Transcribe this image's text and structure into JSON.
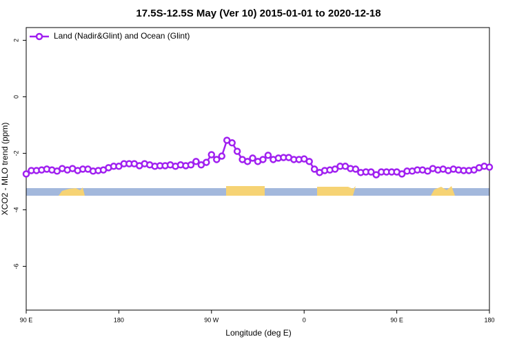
{
  "chart_data": {
    "type": "line",
    "title": "17.5S-12.5S May (Ver 10)   2015-01-01 to 2020-12-18",
    "x_label": "Longitude (deg E)",
    "y_label": "XCO2 - MLO trend (ppm)",
    "x": [
      90,
      95,
      100,
      105,
      110,
      115,
      120,
      125,
      130,
      135,
      140,
      145,
      150,
      155,
      160,
      165,
      170,
      175,
      180,
      185,
      190,
      195,
      200,
      205,
      210,
      215,
      220,
      225,
      230,
      235,
      240,
      245,
      250,
      255,
      260,
      265,
      270,
      275,
      280,
      285,
      290,
      295,
      300,
      305,
      310,
      315,
      320,
      325,
      330,
      335,
      340,
      345,
      350,
      355,
      360,
      365,
      370,
      375,
      380,
      385,
      390,
      395,
      400,
      405,
      410,
      415,
      420,
      425,
      430,
      435,
      440,
      445,
      450,
      455,
      460,
      465,
      470,
      475,
      480,
      485,
      490,
      495,
      500,
      505,
      510,
      515,
      520,
      525,
      530,
      535,
      540
    ],
    "series": [
      {
        "name": "Land (Nadir&Glint) and Ocean (Glint)",
        "color": "#a020f0",
        "values": [
          -2.73,
          -2.61,
          -2.61,
          -2.59,
          -2.56,
          -2.59,
          -2.63,
          -2.54,
          -2.59,
          -2.54,
          -2.61,
          -2.56,
          -2.56,
          -2.63,
          -2.61,
          -2.59,
          -2.51,
          -2.46,
          -2.46,
          -2.37,
          -2.37,
          -2.37,
          -2.44,
          -2.37,
          -2.41,
          -2.46,
          -2.44,
          -2.44,
          -2.41,
          -2.46,
          -2.41,
          -2.44,
          -2.41,
          -2.29,
          -2.41,
          -2.32,
          -2.05,
          -2.22,
          -2.1,
          -1.54,
          -1.63,
          -1.93,
          -2.22,
          -2.29,
          -2.17,
          -2.29,
          -2.22,
          -2.07,
          -2.22,
          -2.17,
          -2.15,
          -2.15,
          -2.22,
          -2.22,
          -2.2,
          -2.29,
          -2.56,
          -2.68,
          -2.61,
          -2.59,
          -2.56,
          -2.46,
          -2.46,
          -2.54,
          -2.56,
          -2.68,
          -2.66,
          -2.66,
          -2.76,
          -2.66,
          -2.66,
          -2.66,
          -2.66,
          -2.73,
          -2.63,
          -2.63,
          -2.59,
          -2.59,
          -2.63,
          -2.54,
          -2.59,
          -2.56,
          -2.61,
          -2.56,
          -2.59,
          -2.61,
          -2.61,
          -2.59,
          -2.51,
          -2.46,
          -2.49
        ]
      }
    ],
    "xlim": [
      90,
      540
    ],
    "xticks": [
      {
        "value": 90,
        "label": "90 E"
      },
      180,
      {
        "value": 270,
        "label": "90 W"
      },
      {
        "value": 360,
        "label": "0"
      },
      {
        "value": 450,
        "label": "90 E"
      },
      {
        "value": 540,
        "label": "180"
      }
    ],
    "ylim": [
      -7.55,
      2.45
    ],
    "yticks": [
      -6,
      -4,
      -2,
      0,
      2
    ],
    "legend": "top-left"
  }
}
